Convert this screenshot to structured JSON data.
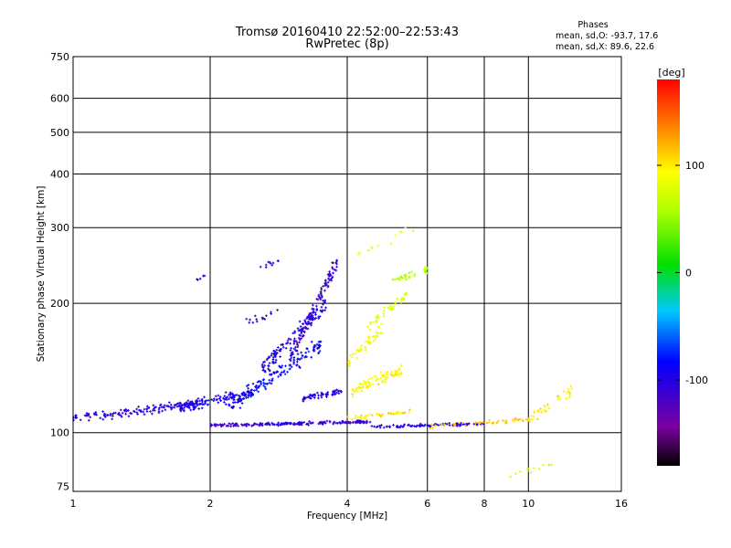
{
  "chart_data": {
    "type": "scatter",
    "title_line1": "Tromsø 20160410 22:52:00–22:53:43",
    "title_line2": "RwPretec (8p)",
    "xlabel": "Frequency [MHz]",
    "ylabel": "Stationary phase Virtual Height [km]",
    "x_scale": "log",
    "y_scale": "log",
    "xlim": [
      1,
      16
    ],
    "ylim": [
      73,
      750
    ],
    "x_ticks": [
      {
        "value": 1,
        "label": "1"
      },
      {
        "value": 2,
        "label": "2"
      },
      {
        "value": 4,
        "label": "4"
      },
      {
        "value": 6,
        "label": "6"
      },
      {
        "value": 8,
        "label": "8"
      },
      {
        "value": 10,
        "label": "10"
      },
      {
        "value": 16,
        "label": "16"
      }
    ],
    "y_ticks": [
      {
        "value": 75,
        "label": "75"
      },
      {
        "value": 100,
        "label": "100"
      },
      {
        "value": 200,
        "label": "200"
      },
      {
        "value": 300,
        "label": "300"
      },
      {
        "value": 400,
        "label": "400"
      },
      {
        "value": 500,
        "label": "500"
      },
      {
        "value": 600,
        "label": "600"
      },
      {
        "value": 750,
        "label": "750"
      }
    ],
    "grid": true,
    "legend": {
      "title": "Phases",
      "line1": "mean, sd,O:  -93.7,  17.6",
      "line2": "mean, sd,X:   89.6,  22.6",
      "placement": "top-right"
    },
    "colorbar": {
      "label": "[deg]",
      "range": [
        -180,
        180
      ],
      "ticks": [
        {
          "value": 100,
          "label": "100"
        },
        {
          "value": 0,
          "label": "0"
        },
        {
          "value": -100,
          "label": "-100"
        }
      ],
      "colormap": "rainbow (black-purple-blue-cyan-green-yellow-red)"
    },
    "series": [
      {
        "segments": [
          {
            "f": [
              1.0,
              1.9
            ],
            "h": [
              108,
              117
            ],
            "phase": -105,
            "n": 150,
            "jh": 0.035
          },
          {
            "f": [
              1.7,
              2.5
            ],
            "h": [
              114,
              124
            ],
            "phase": -95,
            "n": 120,
            "jh": 0.04
          },
          {
            "f": [
              2.0,
              4.5
            ],
            "h": [
              104,
              106
            ],
            "phase": -110,
            "n": 200,
            "jh": 0.012
          },
          {
            "f": [
              4.5,
              8.0
            ],
            "h": [
              103,
              105
            ],
            "phase": -100,
            "n": 90,
            "jh": 0.012
          },
          {
            "f": [
              2.2,
              3.5
            ],
            "h": [
              115,
              160
            ],
            "phase": -85,
            "n": 150,
            "jh": 0.06
          },
          {
            "f": [
              2.6,
              3.6
            ],
            "h": [
              140,
              200
            ],
            "phase": -95,
            "n": 120,
            "jh": 0.06
          },
          {
            "f": [
              3.0,
              3.8
            ],
            "h": [
              150,
              250
            ],
            "phase": -110,
            "n": 120,
            "jh": 0.06
          },
          {
            "f": [
              3.2,
              3.9
            ],
            "h": [
              120,
              125
            ],
            "phase": -100,
            "n": 60,
            "jh": 0.02
          },
          {
            "f": [
              2.4,
              2.9
            ],
            "h": [
              180,
              195
            ],
            "phase": -105,
            "n": 15,
            "jh": 0.03
          },
          {
            "f": [
              1.85,
              1.95
            ],
            "h": [
              225,
              232
            ],
            "phase": -100,
            "n": 5,
            "jh": 0.01
          },
          {
            "f": [
              2.55,
              2.9
            ],
            "h": [
              240,
              255
            ],
            "phase": -105,
            "n": 10,
            "jh": 0.02
          }
        ]
      },
      {
        "segments": [
          {
            "f": [
              4.1,
              5.3
            ],
            "h": [
              125,
              140
            ],
            "phase": 95,
            "n": 90,
            "jh": 0.04
          },
          {
            "f": [
              4.0,
              4.8
            ],
            "h": [
              145,
              175
            ],
            "phase": 90,
            "n": 50,
            "jh": 0.05
          },
          {
            "f": [
              4.4,
              5.4
            ],
            "h": [
              175,
              210
            ],
            "phase": 80,
            "n": 40,
            "jh": 0.04
          },
          {
            "f": [
              5.0,
              6.0
            ],
            "h": [
              225,
              240
            ],
            "phase": 65,
            "n": 35,
            "jh": 0.025
          },
          {
            "f": [
              4.0,
              5.5
            ],
            "h": [
              108,
              112
            ],
            "phase": 100,
            "n": 40,
            "jh": 0.015
          },
          {
            "f": [
              6.0,
              10.5
            ],
            "h": [
              103,
              108
            ],
            "phase": 110,
            "n": 50,
            "jh": 0.02
          },
          {
            "f": [
              10.0,
              12.5
            ],
            "h": [
              108,
              125
            ],
            "phase": 100,
            "n": 35,
            "jh": 0.04
          },
          {
            "f": [
              4.2,
              5.6
            ],
            "h": [
              260,
              300
            ],
            "phase": 90,
            "n": 12,
            "jh": 0.04
          },
          {
            "f": [
              8.5,
              11.5
            ],
            "h": [
              78,
              85
            ],
            "phase": 70,
            "n": 12,
            "jh": 0.03
          }
        ]
      }
    ]
  }
}
